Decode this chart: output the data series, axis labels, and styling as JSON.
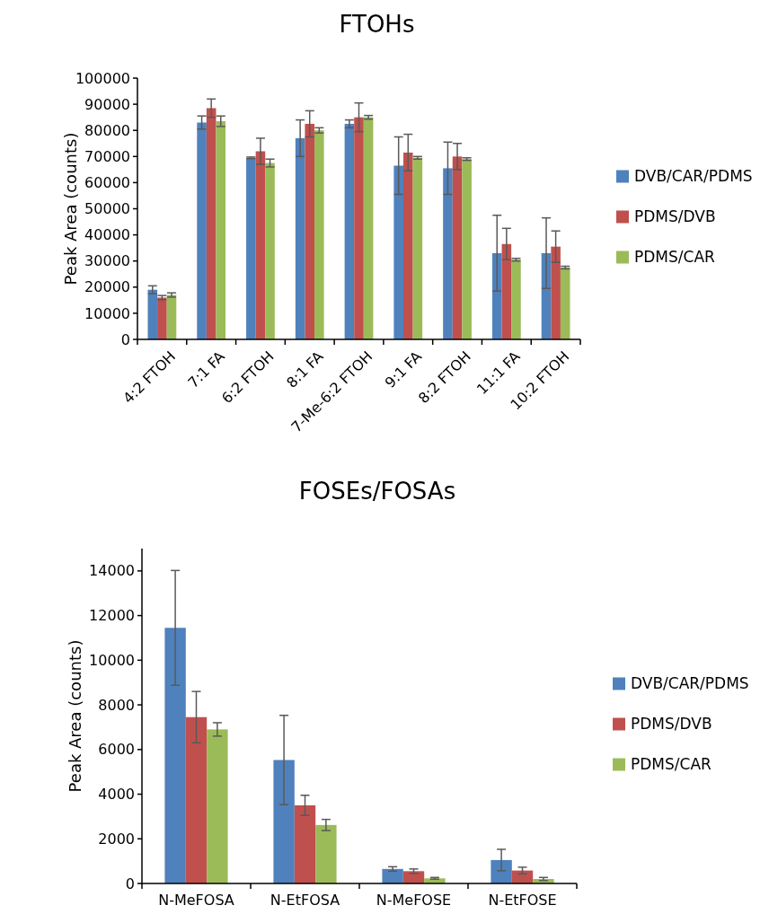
{
  "chart_data": [
    {
      "type": "bar",
      "title": "FTOHs",
      "ylabel": "Peak Area (counts)",
      "categories": [
        "4:2 FTOH",
        "7:1 FA",
        "6:2 FTOH",
        "8:1 FA",
        "7-Me-6:2 FTOH",
        "9:1 FA",
        "8:2 FTOH",
        "11:1 FA",
        "10:2 FTOH"
      ],
      "series": [
        {
          "name": "DVB/CAR/PDMS",
          "color": "#4f81bd",
          "values": [
            19000,
            83000,
            69500,
            77000,
            82500,
            66500,
            65500,
            33000,
            33000
          ],
          "errors": [
            1500,
            2500,
            300,
            7000,
            1500,
            11000,
            10000,
            14500,
            13500
          ]
        },
        {
          "name": "PDMS/DVB",
          "color": "#c0504d",
          "values": [
            16000,
            88500,
            72000,
            82500,
            85000,
            71500,
            70000,
            36500,
            35500
          ],
          "errors": [
            800,
            3500,
            5000,
            5000,
            5500,
            7000,
            5000,
            6000,
            6000
          ]
        },
        {
          "name": "PDMS/CAR",
          "color": "#9bbb59",
          "values": [
            17000,
            83500,
            67500,
            80000,
            85000,
            69500,
            69000,
            30500,
            27500
          ],
          "errors": [
            800,
            2000,
            1500,
            1000,
            700,
            500,
            500,
            500,
            500
          ]
        }
      ],
      "ylim": [
        0,
        100000
      ],
      "yticks": [
        0,
        10000,
        20000,
        30000,
        40000,
        50000,
        60000,
        70000,
        80000,
        90000,
        100000
      ],
      "legend": "right",
      "grid": false
    },
    {
      "type": "bar",
      "title": "FOSEs/FOSAs",
      "ylabel": "Peak Area (counts)",
      "categories": [
        "N-MeFOSA",
        "N-EtFOSA",
        "N-MeFOSE",
        "N-EtFOSE"
      ],
      "series": [
        {
          "name": "DVB/CAR/PDMS",
          "color": "#4f81bd",
          "values": [
            11450,
            5530,
            650,
            1050
          ],
          "errors": [
            2570,
            2000,
            100,
            480
          ]
        },
        {
          "name": "PDMS/DVB",
          "color": "#c0504d",
          "values": [
            7450,
            3500,
            550,
            580
          ],
          "errors": [
            1150,
            450,
            100,
            150
          ]
        },
        {
          "name": "PDMS/CAR",
          "color": "#9bbb59",
          "values": [
            6900,
            2620,
            230,
            200
          ],
          "errors": [
            300,
            250,
            40,
            70
          ]
        }
      ],
      "ylim": [
        0,
        15000
      ],
      "yticks": [
        0,
        2000,
        4000,
        6000,
        8000,
        10000,
        12000,
        14000
      ],
      "legend": "right",
      "grid": false
    }
  ]
}
